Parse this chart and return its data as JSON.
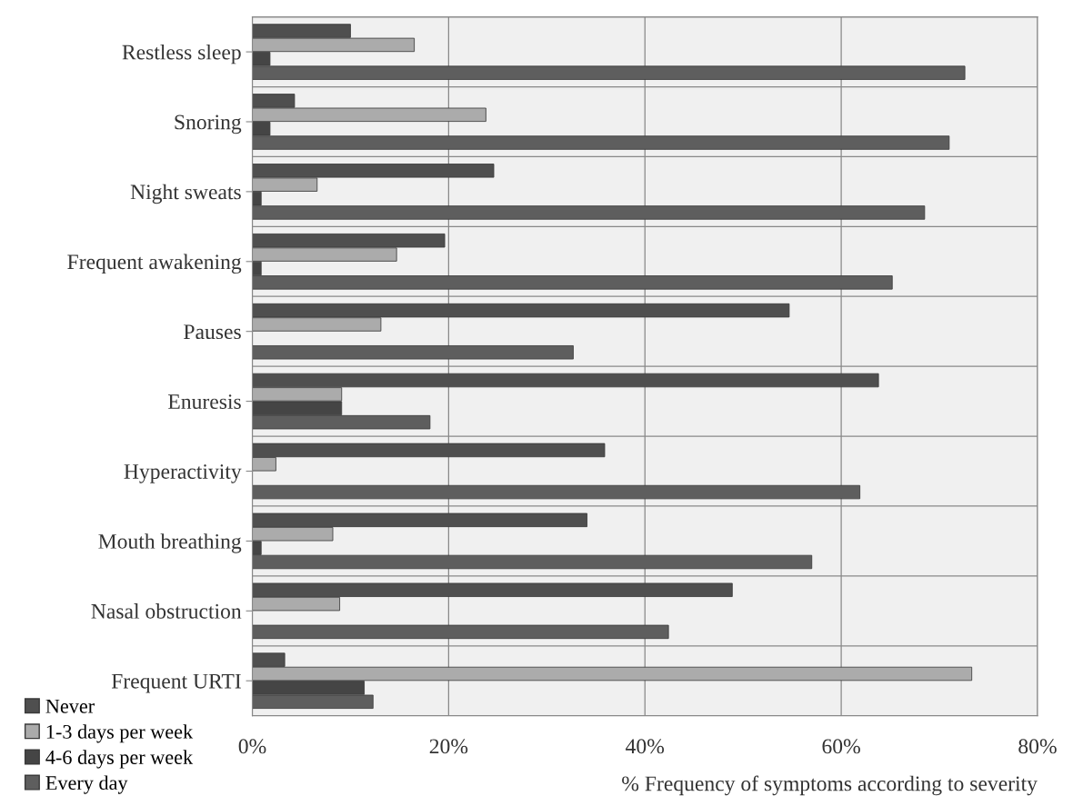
{
  "chart_data": {
    "type": "bar",
    "orientation": "horizontal",
    "xlabel": "% Frequency of symptoms according to severity",
    "categories": [
      "Restless sleep",
      "Snoring",
      "Night sweats",
      "Frequent awakening",
      "Pauses",
      "Enuresis",
      "Hyperactivity",
      "Mouth breathing",
      "Nasal obstruction",
      "Frequent URTI"
    ],
    "series": [
      {
        "name": "Never",
        "color": "#4f4f4f",
        "values": [
          10,
          4.3,
          24.6,
          19.6,
          54.7,
          63.8,
          35.9,
          34.1,
          48.9,
          3.3
        ]
      },
      {
        "name": "1-3 days per week",
        "color": "#ababab",
        "values": [
          16.5,
          23.8,
          6.6,
          14.7,
          13.1,
          9.1,
          2.4,
          8.2,
          8.9,
          73.3
        ]
      },
      {
        "name": "4-6 days per week",
        "color": "#454545",
        "values": [
          1.8,
          1.8,
          0.9,
          0.9,
          0,
          9.1,
          0,
          0.9,
          0,
          11.4
        ]
      },
      {
        "name": "Every day",
        "color": "#5e5e5e",
        "values": [
          72.6,
          71,
          68.5,
          65.2,
          32.7,
          18.1,
          61.9,
          57,
          42.4,
          12.3
        ]
      }
    ],
    "xlim": [
      0,
      80
    ],
    "xticks": [
      {
        "value": 0,
        "label": "0%"
      },
      {
        "value": 20,
        "label": "20%"
      },
      {
        "value": 40,
        "label": "40%"
      },
      {
        "value": 60,
        "label": "60%"
      },
      {
        "value": 80,
        "label": "80%"
      }
    ],
    "grid": "x",
    "legend": "bottom left"
  }
}
